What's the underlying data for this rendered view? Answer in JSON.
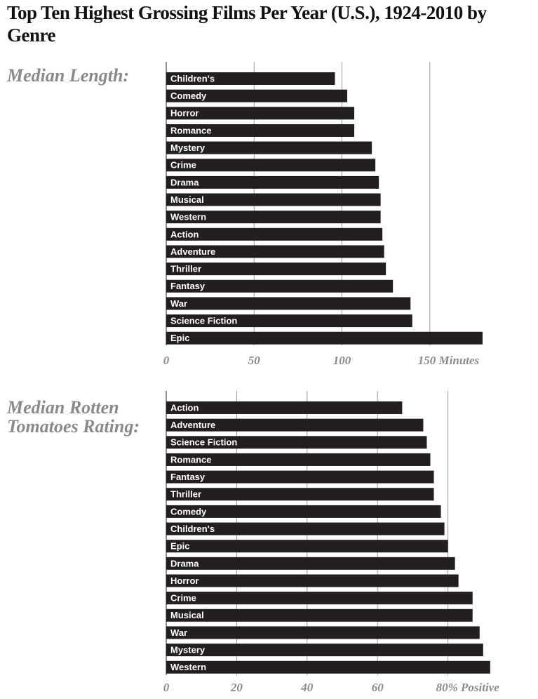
{
  "title": "Top Ten Highest Grossing Films Per Year (U.S.), 1924-2010 by Genre",
  "chart_data": [
    {
      "type": "bar",
      "orientation": "horizontal",
      "label": "Median Length:",
      "color": "#231f20",
      "categories": [
        "Children's",
        "Comedy",
        "Horror",
        "Romance",
        "Mystery",
        "Crime",
        "Drama",
        "Musical",
        "Western",
        "Action",
        "Adventure",
        "Thriller",
        "Fantasy",
        "War",
        "Science Fiction",
        "Epic"
      ],
      "values": [
        96,
        103,
        107,
        107,
        117,
        119,
        121,
        122,
        122,
        123,
        124,
        125,
        129,
        139,
        140,
        180
      ],
      "xlim": [
        0,
        190
      ],
      "xticks": [
        0,
        50,
        100,
        {
          "value": 150,
          "label": "150 Minutes"
        }
      ],
      "grid": true
    },
    {
      "type": "bar",
      "orientation": "horizontal",
      "label": "Median Rotten Tomatoes Rating:",
      "color": "#231f20",
      "categories": [
        "Action",
        "Adventure",
        "Science Fiction",
        "Romance",
        "Fantasy",
        "Thriller",
        "Comedy",
        "Children's",
        "Epic",
        "Drama",
        "Horror",
        "Crime",
        "Musical",
        "War",
        "Mystery",
        "Western"
      ],
      "values": [
        67,
        73,
        74,
        75,
        76,
        76,
        78,
        79,
        80,
        82,
        83,
        87,
        87,
        89,
        90,
        92
      ],
      "xlim": [
        0,
        100
      ],
      "xticks": [
        0,
        20,
        40,
        60,
        {
          "value": 80,
          "label": "80% Positive"
        }
      ],
      "grid": true
    }
  ]
}
